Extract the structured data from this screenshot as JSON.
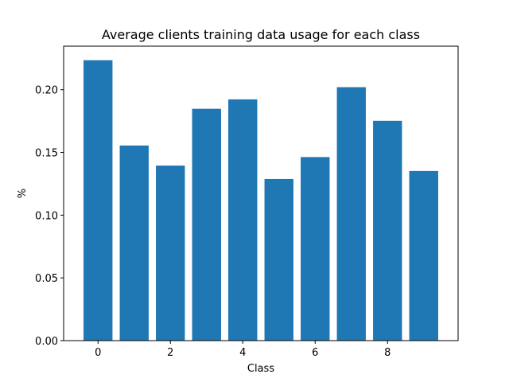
{
  "chart_data": {
    "type": "bar",
    "title": "Average clients training data usage for each class",
    "xlabel": "Class",
    "ylabel": "%",
    "categories": [
      0,
      1,
      2,
      3,
      4,
      5,
      6,
      7,
      8,
      9
    ],
    "values": [
      0.2235,
      0.1555,
      0.1395,
      0.1848,
      0.1923,
      0.1288,
      0.1463,
      0.202,
      0.1752,
      0.1352
    ],
    "xlim": [
      -0.95,
      9.95
    ],
    "ylim": [
      0,
      0.2347
    ],
    "xticks": [
      0,
      2,
      4,
      6,
      8
    ],
    "xtick_labels": [
      "0",
      "2",
      "4",
      "6",
      "8"
    ],
    "yticks": [
      0,
      0.05,
      0.1,
      0.15,
      0.2
    ],
    "ytick_labels": [
      "0.00",
      "0.05",
      "0.10",
      "0.15",
      "0.20"
    ],
    "bar_color": "#1f77b4",
    "grid": false,
    "legend": "none"
  }
}
